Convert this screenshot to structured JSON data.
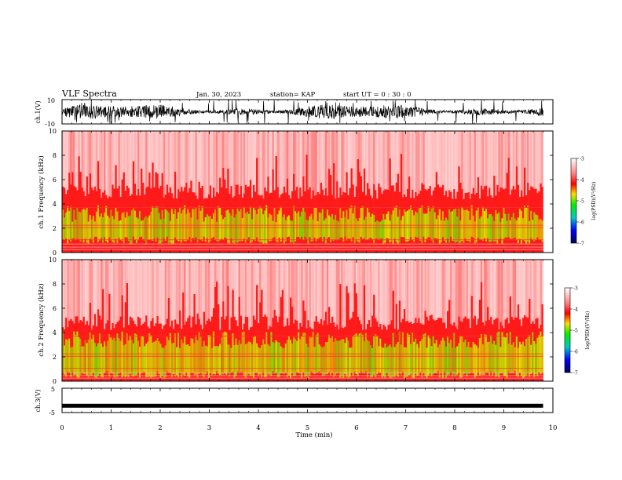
{
  "header": {
    "title": "VLF Spectra",
    "date": "Jan. 30, 2023",
    "station": "station= KAP",
    "start": "start  UT =   0 : 30 : 0"
  },
  "chart_data": [
    {
      "type": "line",
      "id": "ch1-waveform",
      "ylabel": "ch.1(V)",
      "ylim": [
        -10,
        10
      ],
      "yticks": [
        "10",
        "-10"
      ],
      "xlim": [
        0,
        10
      ],
      "series_color": "#000000"
    },
    {
      "type": "heatmap",
      "id": "ch1-spectrogram",
      "ylabel": "ch.1 Frequency (kHz)",
      "ylim": [
        0,
        10
      ],
      "yticks": [
        "0",
        "2",
        "4",
        "6",
        "8",
        "10"
      ],
      "xlim": [
        0,
        10
      ],
      "data_extent_min": 9.8,
      "band_profile_kHz": {
        "green_yellow_band": [
          0.9,
          3.2
        ],
        "red_band": [
          0,
          5.0
        ],
        "sparse_red_above": [
          5.0,
          10
        ]
      },
      "colorbar": {
        "label": "log(PSD)(V²/Hz)",
        "range": [
          -7,
          -3
        ],
        "ticks": [
          "-3",
          "-4",
          "-5",
          "-6",
          "-7"
        ]
      }
    },
    {
      "type": "heatmap",
      "id": "ch2-spectrogram",
      "ylabel": "ch.2 Frequency (kHz)",
      "ylim": [
        0,
        10
      ],
      "yticks": [
        "0",
        "2",
        "4",
        "6",
        "8",
        "10"
      ],
      "xlim": [
        0,
        10
      ],
      "data_extent_min": 9.8,
      "band_profile_kHz": {
        "green_yellow_band": [
          0.4,
          3.4
        ],
        "red_band": [
          0,
          4.8
        ],
        "sparse_red_above": [
          4.8,
          10
        ]
      },
      "colorbar": {
        "label": "log(PSD)(V²/Hz)",
        "range": [
          -7,
          -3
        ],
        "ticks": [
          "-3",
          "-4",
          "-5",
          "-6",
          "-7"
        ]
      }
    },
    {
      "type": "line",
      "id": "ch3-waveform",
      "ylabel": "ch.3(V)",
      "ylim": [
        -5,
        5
      ],
      "yticks": [
        "5",
        "-5"
      ],
      "xlim": [
        0,
        10
      ],
      "level_V": -2.2,
      "series_color": "#000000"
    }
  ],
  "x_axis": {
    "label": "Time  (min)",
    "ticks": [
      "0",
      "1",
      "2",
      "3",
      "4",
      "5",
      "6",
      "7",
      "8",
      "9",
      "10"
    ]
  }
}
